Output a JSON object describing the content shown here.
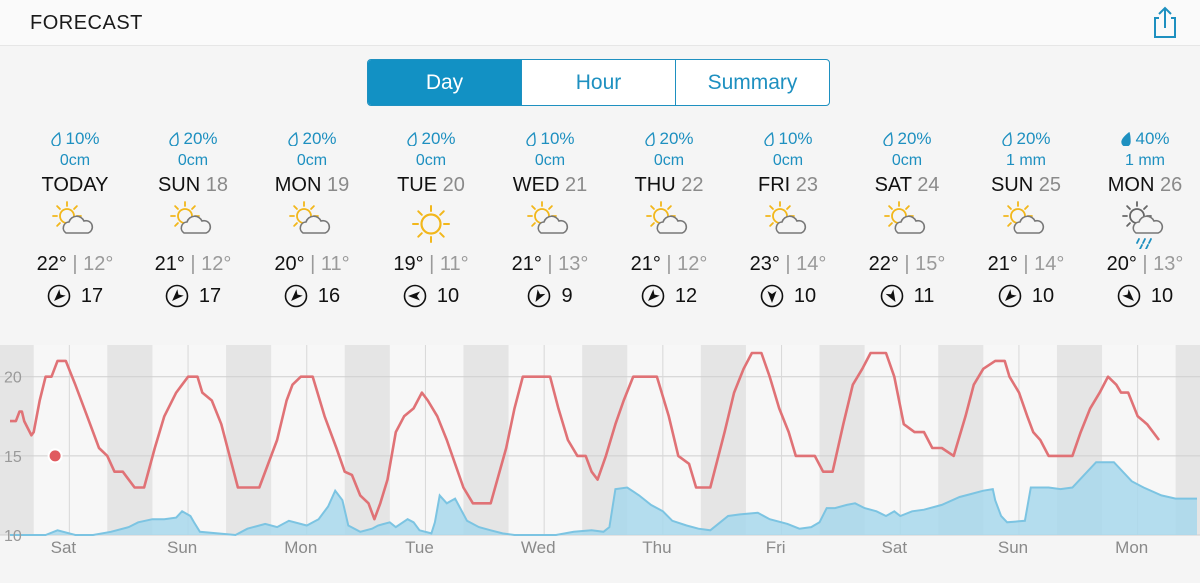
{
  "header": {
    "title": "FORECAST",
    "share_icon": "share-icon"
  },
  "segments": [
    {
      "label": "Day",
      "active": true
    },
    {
      "label": "Hour",
      "active": false
    },
    {
      "label": "Summary",
      "active": false
    }
  ],
  "days": [
    {
      "rain": "10%",
      "amount": "0cm",
      "name": "TODAY",
      "num": "",
      "icon": "partly-cloudy-icon",
      "high": "22°",
      "low": "12°",
      "wind": "17",
      "wind_dir": 225,
      "drop_filled": false
    },
    {
      "rain": "20%",
      "amount": "0cm",
      "name": "SUN",
      "num": "18",
      "icon": "partly-cloudy-icon",
      "high": "21°",
      "low": "12°",
      "wind": "17",
      "wind_dir": 225,
      "drop_filled": false
    },
    {
      "rain": "20%",
      "amount": "0cm",
      "name": "MON",
      "num": "19",
      "icon": "partly-cloudy-icon",
      "high": "20°",
      "low": "11°",
      "wind": "16",
      "wind_dir": 225,
      "drop_filled": false
    },
    {
      "rain": "20%",
      "amount": "0cm",
      "name": "TUE",
      "num": "20",
      "icon": "sunny-icon",
      "high": "19°",
      "low": "11°",
      "wind": "10",
      "wind_dir": 270,
      "drop_filled": false
    },
    {
      "rain": "10%",
      "amount": "0cm",
      "name": "WED",
      "num": "21",
      "icon": "partly-cloudy-icon",
      "high": "21°",
      "low": "13°",
      "wind": "9",
      "wind_dir": 210,
      "drop_filled": false
    },
    {
      "rain": "20%",
      "amount": "0cm",
      "name": "THU",
      "num": "22",
      "icon": "partly-cloudy-icon",
      "high": "21°",
      "low": "12°",
      "wind": "12",
      "wind_dir": 225,
      "drop_filled": false
    },
    {
      "rain": "10%",
      "amount": "0cm",
      "name": "FRI",
      "num": "23",
      "icon": "partly-cloudy-icon",
      "high": "23°",
      "low": "14°",
      "wind": "10",
      "wind_dir": 180,
      "drop_filled": false
    },
    {
      "rain": "20%",
      "amount": "0cm",
      "name": "SAT",
      "num": "24",
      "icon": "partly-cloudy-icon",
      "high": "22°",
      "low": "15°",
      "wind": "11",
      "wind_dir": 150,
      "drop_filled": false
    },
    {
      "rain": "20%",
      "amount": "1 mm",
      "name": "SUN",
      "num": "25",
      "icon": "partly-cloudy-icon",
      "high": "21°",
      "low": "14°",
      "wind": "10",
      "wind_dir": 225,
      "drop_filled": false
    },
    {
      "rain": "40%",
      "amount": "1 mm",
      "name": "MON",
      "num": "26",
      "icon": "cloudy-rain-icon",
      "high": "20°",
      "low": "13°",
      "wind": "10",
      "wind_dir": 135,
      "drop_filled": true
    }
  ],
  "colors": {
    "accent": "#1291c4",
    "temp_line": "#e07276",
    "rain_fill": "#a8d8ec",
    "rain_line": "#7cc4e2",
    "sun": "#f2b71b"
  },
  "chart_data": {
    "type": "line",
    "ylabels": [
      "20",
      "15",
      "10"
    ],
    "ylim": [
      10,
      21.5
    ],
    "xlabels": [
      "Sat",
      "Sun",
      "Mon",
      "Tue",
      "Wed",
      "Thu",
      "Fri",
      "Sat",
      "Sun",
      "Mon"
    ],
    "series": [
      {
        "values": [
          [
            0.0,
            17.2
          ],
          [
            0.05,
            17.2
          ],
          [
            0.08,
            17.8
          ],
          [
            0.1,
            17.8
          ],
          [
            0.12,
            17.2
          ],
          [
            0.18,
            16.3
          ],
          [
            0.2,
            16.5
          ],
          [
            0.25,
            18.5
          ],
          [
            0.3,
            20.0
          ],
          [
            0.35,
            20.0
          ],
          [
            0.4,
            21.0
          ],
          [
            0.47,
            21.0
          ],
          [
            0.55,
            19.5
          ],
          [
            0.65,
            17.5
          ],
          [
            0.75,
            15.5
          ],
          [
            0.82,
            15.0
          ],
          [
            0.88,
            14.0
          ],
          [
            0.95,
            14.0
          ],
          [
            1.05,
            13.0
          ],
          [
            1.13,
            13.0
          ],
          [
            1.22,
            15.5
          ],
          [
            1.3,
            17.5
          ],
          [
            1.4,
            19.0
          ],
          [
            1.45,
            19.5
          ],
          [
            1.5,
            20.0
          ],
          [
            1.58,
            20.0
          ],
          [
            1.62,
            19.0
          ],
          [
            1.7,
            18.5
          ],
          [
            1.78,
            17.0
          ],
          [
            1.85,
            15.0
          ],
          [
            1.92,
            13.0
          ],
          [
            2.1,
            13.0
          ],
          [
            2.25,
            16.0
          ],
          [
            2.33,
            18.5
          ],
          [
            2.38,
            19.5
          ],
          [
            2.45,
            20.0
          ],
          [
            2.55,
            20.0
          ],
          [
            2.65,
            17.5
          ],
          [
            2.75,
            15.5
          ],
          [
            2.82,
            14.0
          ],
          [
            2.88,
            13.8
          ],
          [
            2.95,
            12.5
          ],
          [
            3.02,
            12.0
          ],
          [
            3.07,
            11.0
          ],
          [
            3.12,
            12.0
          ],
          [
            3.18,
            13.5
          ],
          [
            3.25,
            16.5
          ],
          [
            3.32,
            17.5
          ],
          [
            3.4,
            18.0
          ],
          [
            3.47,
            19.0
          ],
          [
            3.52,
            18.5
          ],
          [
            3.6,
            17.5
          ],
          [
            3.68,
            16.0
          ],
          [
            3.75,
            14.5
          ],
          [
            3.82,
            13.0
          ],
          [
            3.9,
            12.0
          ],
          [
            4.05,
            12.0
          ],
          [
            4.18,
            15.5
          ],
          [
            4.25,
            18.0
          ],
          [
            4.32,
            20.0
          ],
          [
            4.55,
            20.0
          ],
          [
            4.62,
            18.0
          ],
          [
            4.7,
            16.0
          ],
          [
            4.78,
            15.0
          ],
          [
            4.85,
            15.0
          ],
          [
            4.9,
            14.0
          ],
          [
            4.95,
            13.5
          ],
          [
            5.02,
            15.0
          ],
          [
            5.1,
            17.0
          ],
          [
            5.17,
            18.5
          ],
          [
            5.25,
            20.0
          ],
          [
            5.45,
            20.0
          ],
          [
            5.55,
            17.5
          ],
          [
            5.63,
            15.0
          ],
          [
            5.72,
            14.5
          ],
          [
            5.78,
            13.0
          ],
          [
            5.9,
            13.0
          ],
          [
            6.02,
            16.5
          ],
          [
            6.1,
            19.0
          ],
          [
            6.18,
            20.5
          ],
          [
            6.25,
            21.5
          ],
          [
            6.33,
            21.5
          ],
          [
            6.4,
            20.0
          ],
          [
            6.48,
            18.0
          ],
          [
            6.56,
            16.5
          ],
          [
            6.62,
            15.0
          ],
          [
            6.78,
            15.0
          ],
          [
            6.85,
            14.0
          ],
          [
            6.93,
            14.0
          ],
          [
            7.02,
            17.0
          ],
          [
            7.1,
            19.5
          ],
          [
            7.18,
            20.5
          ],
          [
            7.25,
            21.5
          ],
          [
            7.38,
            21.5
          ],
          [
            7.45,
            20.0
          ],
          [
            7.53,
            17.0
          ],
          [
            7.62,
            16.5
          ],
          [
            7.7,
            16.5
          ],
          [
            7.77,
            15.5
          ],
          [
            7.85,
            15.5
          ],
          [
            7.95,
            15.0
          ],
          [
            8.05,
            17.5
          ],
          [
            8.12,
            19.5
          ],
          [
            8.2,
            20.5
          ],
          [
            8.3,
            21.0
          ],
          [
            8.38,
            21.0
          ],
          [
            8.42,
            20.0
          ],
          [
            8.5,
            19.0
          ],
          [
            8.57,
            17.5
          ],
          [
            8.62,
            16.5
          ],
          [
            8.68,
            16.0
          ],
          [
            8.75,
            15.0
          ],
          [
            8.85,
            15.0
          ],
          [
            8.95,
            15.0
          ],
          [
            9.02,
            16.5
          ],
          [
            9.1,
            18.0
          ],
          [
            9.18,
            19.0
          ],
          [
            9.25,
            20.0
          ],
          [
            9.32,
            19.5
          ],
          [
            9.36,
            19.0
          ],
          [
            9.42,
            19.0
          ],
          [
            9.5,
            17.5
          ],
          [
            9.58,
            17.0
          ],
          [
            9.68,
            16.0
          ]
        ]
      },
      {
        "values": [
          [
            0.0,
            10.0
          ],
          [
            0.3,
            10.0
          ],
          [
            0.4,
            10.3
          ],
          [
            0.55,
            10.0
          ],
          [
            0.7,
            10.0
          ],
          [
            0.85,
            10.2
          ],
          [
            1.0,
            10.5
          ],
          [
            1.08,
            10.8
          ],
          [
            1.2,
            11.0
          ],
          [
            1.3,
            11.0
          ],
          [
            1.4,
            11.1
          ],
          [
            1.45,
            11.5
          ],
          [
            1.52,
            11.2
          ],
          [
            1.55,
            10.8
          ],
          [
            1.6,
            10.2
          ],
          [
            1.75,
            10.1
          ],
          [
            1.9,
            10.0
          ],
          [
            2.0,
            10.4
          ],
          [
            2.15,
            10.7
          ],
          [
            2.25,
            10.5
          ],
          [
            2.35,
            10.9
          ],
          [
            2.5,
            10.6
          ],
          [
            2.6,
            11.0
          ],
          [
            2.68,
            11.8
          ],
          [
            2.74,
            12.8
          ],
          [
            2.8,
            12.2
          ],
          [
            2.85,
            10.6
          ],
          [
            2.95,
            10.2
          ],
          [
            3.05,
            10.4
          ],
          [
            3.1,
            10.6
          ],
          [
            3.2,
            10.8
          ],
          [
            3.25,
            10.5
          ],
          [
            3.35,
            11.0
          ],
          [
            3.4,
            10.8
          ],
          [
            3.45,
            10.3
          ],
          [
            3.55,
            10.1
          ],
          [
            3.58,
            10.8
          ],
          [
            3.62,
            12.5
          ],
          [
            3.68,
            12.0
          ],
          [
            3.75,
            12.3
          ],
          [
            3.85,
            10.9
          ],
          [
            3.95,
            10.5
          ],
          [
            4.05,
            10.3
          ],
          [
            4.15,
            10.1
          ],
          [
            4.25,
            10.0
          ],
          [
            4.45,
            10.0
          ],
          [
            4.6,
            10.0
          ],
          [
            4.75,
            10.2
          ],
          [
            4.9,
            10.3
          ],
          [
            5.0,
            10.2
          ],
          [
            5.05,
            10.5
          ],
          [
            5.1,
            12.9
          ],
          [
            5.2,
            13.0
          ],
          [
            5.3,
            12.5
          ],
          [
            5.4,
            11.9
          ],
          [
            5.5,
            11.5
          ],
          [
            5.58,
            10.9
          ],
          [
            5.7,
            10.6
          ],
          [
            5.8,
            10.4
          ],
          [
            5.9,
            10.3
          ],
          [
            6.05,
            11.2
          ],
          [
            6.15,
            11.3
          ],
          [
            6.3,
            11.4
          ],
          [
            6.4,
            11.0
          ],
          [
            6.55,
            10.7
          ],
          [
            6.65,
            10.4
          ],
          [
            6.75,
            10.5
          ],
          [
            6.82,
            10.8
          ],
          [
            6.88,
            11.7
          ],
          [
            6.95,
            11.7
          ],
          [
            7.05,
            11.9
          ],
          [
            7.12,
            12.0
          ],
          [
            7.2,
            11.7
          ],
          [
            7.3,
            11.5
          ],
          [
            7.38,
            11.2
          ],
          [
            7.45,
            11.5
          ],
          [
            7.5,
            11.2
          ],
          [
            7.6,
            11.5
          ],
          [
            7.7,
            11.6
          ],
          [
            7.85,
            11.9
          ],
          [
            8.0,
            12.4
          ],
          [
            8.1,
            12.6
          ],
          [
            8.2,
            12.8
          ],
          [
            8.28,
            12.9
          ],
          [
            8.3,
            12.2
          ],
          [
            8.35,
            11.2
          ],
          [
            8.4,
            10.8
          ],
          [
            8.55,
            10.9
          ],
          [
            8.6,
            13.0
          ],
          [
            8.75,
            13.0
          ],
          [
            8.85,
            12.9
          ],
          [
            8.95,
            13.0
          ],
          [
            9.05,
            13.8
          ],
          [
            9.15,
            14.6
          ],
          [
            9.3,
            14.6
          ],
          [
            9.45,
            13.4
          ],
          [
            9.55,
            13.0
          ],
          [
            9.7,
            12.5
          ],
          [
            9.82,
            12.3
          ],
          [
            9.92,
            12.3
          ],
          [
            10.0,
            12.3
          ]
        ]
      }
    ],
    "current_marker": [
      0.38,
      15.0
    ]
  }
}
